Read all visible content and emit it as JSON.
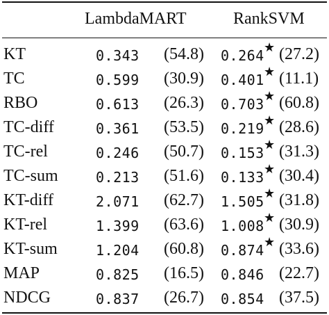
{
  "table": {
    "header": {
      "col1": "",
      "col2": "LambdaMART",
      "col3": "RankSVM"
    },
    "rows": [
      {
        "metric": "KT",
        "lm": "0.343",
        "lm_paren": "(54.8)",
        "rs": "0.264",
        "rs_star": "★",
        "rs_paren": "(27.2)"
      },
      {
        "metric": "TC",
        "lm": "0.599",
        "lm_paren": "(30.9)",
        "rs": "0.401",
        "rs_star": "★",
        "rs_paren": "(11.1)"
      },
      {
        "metric": "RBO",
        "lm": "0.613",
        "lm_paren": "(26.3)",
        "rs": "0.703",
        "rs_star": "★",
        "rs_paren": "(60.8)"
      },
      {
        "metric": "TC-diff",
        "lm": "0.361",
        "lm_paren": "(53.5)",
        "rs": "0.219",
        "rs_star": "★",
        "rs_paren": "(28.6)"
      },
      {
        "metric": "TC-rel",
        "lm": "0.246",
        "lm_paren": "(50.7)",
        "rs": "0.153",
        "rs_star": "★",
        "rs_paren": "(31.3)"
      },
      {
        "metric": "TC-sum",
        "lm": "0.213",
        "lm_paren": "(51.6)",
        "rs": "0.133",
        "rs_star": "★",
        "rs_paren": "(30.4)"
      },
      {
        "metric": "KT-diff",
        "lm": "2.071",
        "lm_paren": "(62.7)",
        "rs": "1.505",
        "rs_star": "★",
        "rs_paren": "(31.8)"
      },
      {
        "metric": "KT-rel",
        "lm": "1.399",
        "lm_paren": "(63.6)",
        "rs": "1.008",
        "rs_star": "★",
        "rs_paren": "(30.9)"
      },
      {
        "metric": "KT-sum",
        "lm": "1.204",
        "lm_paren": "(60.8)",
        "rs": "0.874",
        "rs_star": "★",
        "rs_paren": "(33.6)"
      },
      {
        "metric": "MAP",
        "lm": "0.825",
        "lm_paren": "(16.5)",
        "rs": "0.846",
        "rs_star": "",
        "rs_paren": "(22.7)"
      },
      {
        "metric": "NDCG",
        "lm": "0.837",
        "lm_paren": "(26.7)",
        "rs": "0.854",
        "rs_star": "",
        "rs_paren": "(37.5)"
      }
    ]
  }
}
